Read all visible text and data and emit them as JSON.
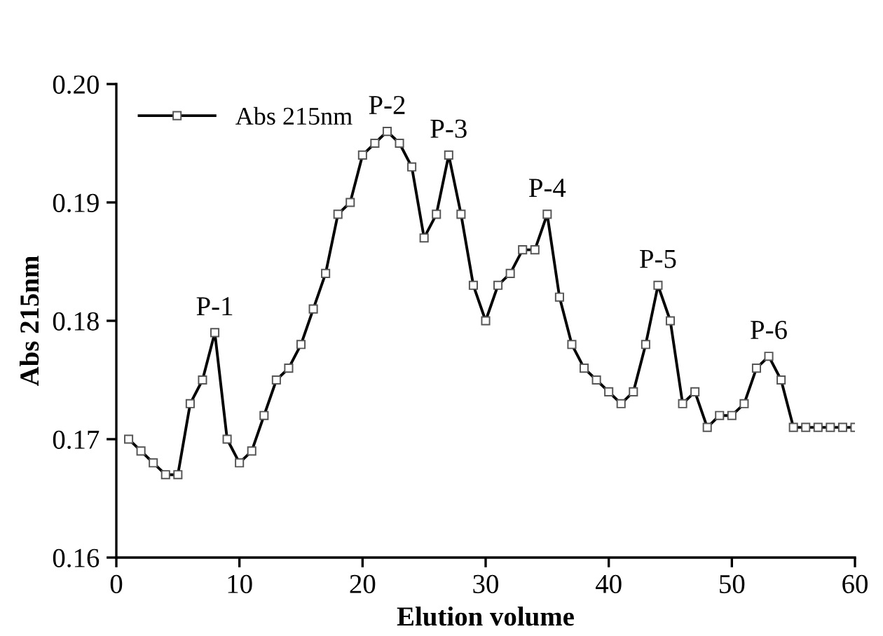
{
  "chart_data": {
    "type": "line",
    "xlabel": "Elution volume",
    "ylabel": "Abs 215nm",
    "x": [
      1,
      2,
      3,
      4,
      5,
      6,
      7,
      8,
      9,
      10,
      11,
      12,
      13,
      14,
      15,
      16,
      17,
      18,
      19,
      20,
      21,
      22,
      23,
      24,
      25,
      26,
      27,
      28,
      29,
      30,
      31,
      32,
      33,
      34,
      35,
      36,
      37,
      38,
      39,
      40,
      41,
      42,
      43,
      44,
      45,
      46,
      47,
      48,
      49,
      50,
      51,
      52,
      53,
      54,
      55,
      56,
      57,
      58,
      59,
      60
    ],
    "series": [
      {
        "name": "Abs 215nm",
        "color": "#000000",
        "values": [
          0.17,
          0.169,
          0.168,
          0.167,
          0.167,
          0.173,
          0.175,
          0.179,
          0.17,
          0.168,
          0.169,
          0.172,
          0.175,
          0.176,
          0.178,
          0.181,
          0.184,
          0.189,
          0.19,
          0.194,
          0.195,
          0.196,
          0.195,
          0.193,
          0.187,
          0.189,
          0.194,
          0.189,
          0.183,
          0.18,
          0.183,
          0.184,
          0.186,
          0.186,
          0.189,
          0.182,
          0.178,
          0.176,
          0.175,
          0.174,
          0.173,
          0.174,
          0.178,
          0.183,
          0.18,
          0.173,
          0.174,
          0.171,
          0.172,
          0.172,
          0.173,
          0.176,
          0.177,
          0.175,
          0.171,
          0.171,
          0.171,
          0.171,
          0.171,
          0.171
        ]
      }
    ],
    "xlim": [
      0,
      60
    ],
    "ylim": [
      0.16,
      0.2
    ],
    "xticks": [
      0,
      10,
      20,
      30,
      40,
      50,
      60
    ],
    "yticks": [
      {
        "value": 0.16,
        "label": "0.16"
      },
      {
        "value": 0.17,
        "label": "0.17"
      },
      {
        "value": 0.18,
        "label": "0.18"
      },
      {
        "value": 0.19,
        "label": "0.19"
      },
      {
        "value": 0.2,
        "label": "0.20"
      }
    ],
    "annotations": [
      {
        "text": "P-1",
        "x": 8,
        "y": 0.179
      },
      {
        "text": "P-2",
        "x": 22,
        "y": 0.196
      },
      {
        "text": "P-3",
        "x": 27,
        "y": 0.194
      },
      {
        "text": "P-4",
        "x": 35,
        "y": 0.189
      },
      {
        "text": "P-5",
        "x": 44,
        "y": 0.183
      },
      {
        "text": "P-6",
        "x": 53,
        "y": 0.177
      }
    ],
    "marker": "square",
    "line_style": "solid",
    "grid": false,
    "legend": "top left"
  }
}
